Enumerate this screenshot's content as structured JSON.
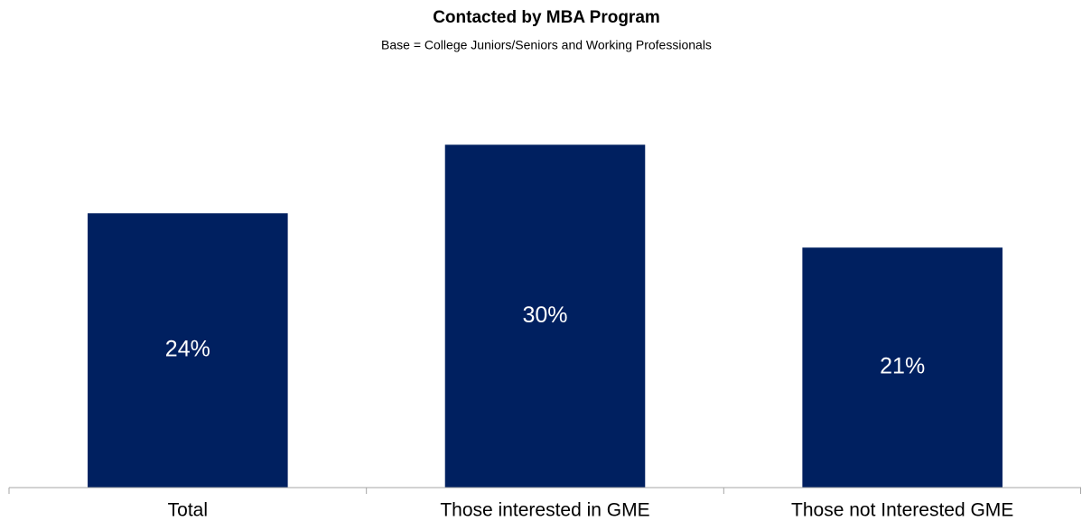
{
  "chart_data": {
    "type": "bar",
    "title": "Contacted by MBA Program",
    "subtitle": "Base = College Juniors/Seniors and Working Professionals",
    "categories": [
      "Total",
      "Those interested in GME",
      "Those not Interested GME"
    ],
    "values": [
      24,
      30,
      21
    ],
    "value_labels": [
      "24%",
      "30%",
      "21%"
    ],
    "color": "#002060",
    "ylim": [
      0,
      35
    ]
  }
}
